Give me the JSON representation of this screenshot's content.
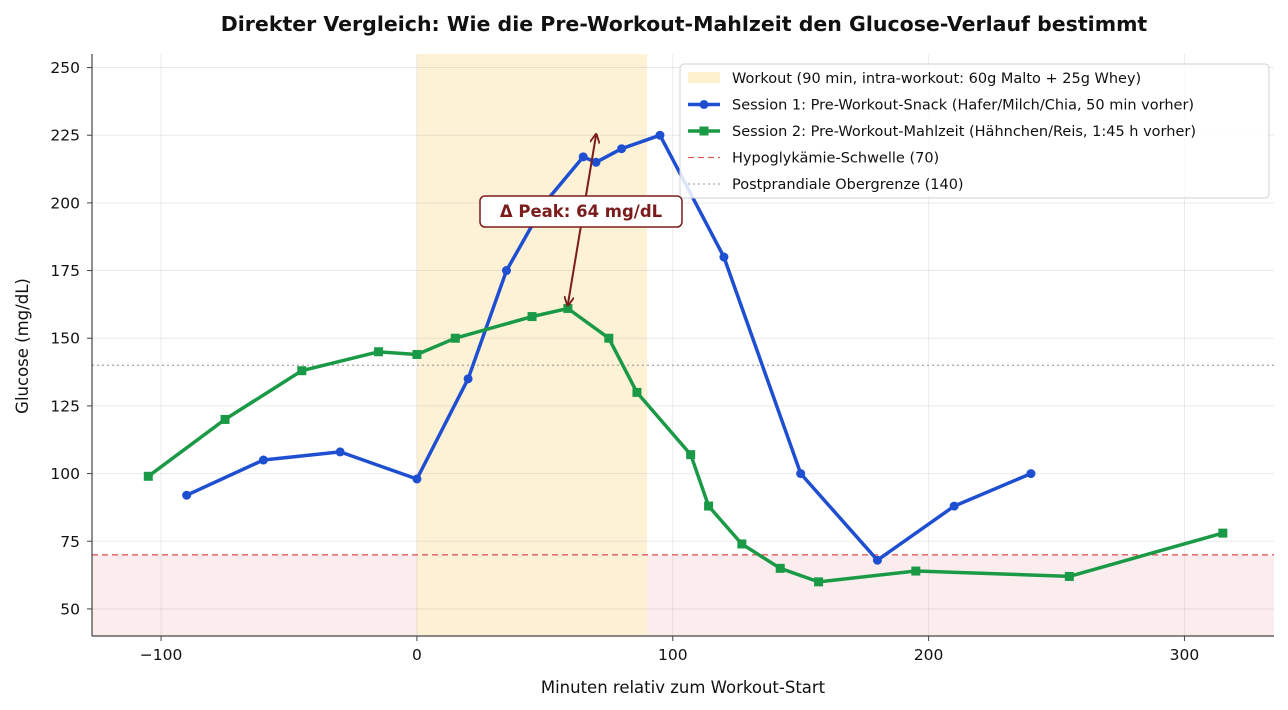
{
  "chart_data": {
    "type": "line",
    "title": "Direkter Vergleich: Wie die Pre-Workout-Mahlzeit den Glucose-Verlauf bestimmt",
    "xlabel": "Minuten relativ zum Workout-Start",
    "ylabel": "Glucose (mg/dL)",
    "xlim": [
      -127,
      335
    ],
    "ylim": [
      40,
      255
    ],
    "xticks": [
      -100,
      0,
      100,
      200,
      300
    ],
    "xtick_labels": [
      "−100",
      "0",
      "100",
      "200",
      "300"
    ],
    "yticks": [
      50,
      75,
      100,
      125,
      150,
      175,
      200,
      225,
      250
    ],
    "grid": true,
    "legend_position": "top-right",
    "series": [
      {
        "name": "Session 1: Pre-Workout-Snack (Hafer/Milch/Chia, 50 min vorher)",
        "color": "#1f4fd1",
        "marker": "circle",
        "x": [
          -90,
          -60,
          -30,
          0,
          20,
          35,
          50,
          65,
          70,
          80,
          95,
          120,
          150,
          180,
          210,
          240
        ],
        "y": [
          92,
          105,
          108,
          98,
          135,
          175,
          200,
          217,
          215,
          220,
          225,
          180,
          100,
          68,
          88,
          100
        ]
      },
      {
        "name": "Session 2: Pre-Workout-Mahlzeit (Hähnchen/Reis, 1:45 h vorher)",
        "color": "#1a9a46",
        "marker": "square",
        "x": [
          -105,
          -75,
          -45,
          -15,
          0,
          15,
          45,
          59,
          75,
          86,
          107,
          114,
          127,
          142,
          157,
          195,
          255,
          315
        ],
        "y": [
          99,
          120,
          138,
          145,
          144,
          150,
          158,
          161,
          150,
          130,
          107,
          88,
          74,
          65,
          60,
          64,
          62,
          78
        ]
      }
    ],
    "workout_band": {
      "label": "Workout (90 min, intra-workout: 60g Malto + 25g Whey)",
      "x_start": 0,
      "x_end": 90,
      "color": "#fdf0cf"
    },
    "hypo_line": {
      "label": "Hypoglykämie-Schwelle (70)",
      "y": 70,
      "color": "#e05a5a"
    },
    "postprandial_line": {
      "label": "Postprandiale Obergrenze (140)",
      "y": 140,
      "color": "#aaaaaa"
    },
    "annotation": {
      "text": "Δ Peak: 64 mg/dL",
      "color": "#7b1c1c",
      "arrow_from": [
        59,
        161
      ],
      "arrow_to": [
        70,
        225
      ]
    }
  }
}
